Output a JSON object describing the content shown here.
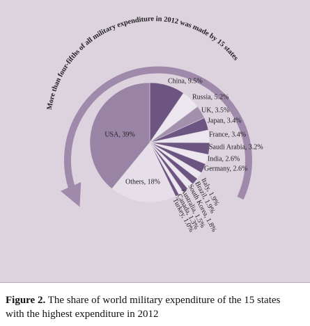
{
  "chart_data": {
    "type": "pie",
    "annotation": "More than four-fifths of all military expenditure in 2012 was made by 15 states",
    "categories": [
      "China",
      "Russia",
      "UK",
      "Japan",
      "France",
      "Saudi Arabia",
      "India",
      "Germany",
      "Italy",
      "Brazil",
      "South Korea",
      "Australia",
      "Canada",
      "Turkey",
      "Others",
      "USA"
    ],
    "values": [
      9.5,
      5.2,
      3.5,
      3.4,
      3.4,
      3.2,
      2.6,
      2.6,
      1.9,
      1.9,
      1.8,
      1.5,
      1.3,
      1.0,
      18,
      39
    ],
    "value_labels": [
      "China, 9.5%",
      "Russia, 5.2%",
      "UK, 3.5%",
      "Japan, 3.4%",
      "France, 3.4%",
      "Saudi Arabia, 3.2%",
      "India, 2.6%",
      "Germany, 2.6%",
      "Italy, 1.9%",
      "Brazil, 1.9%",
      "South Korea, 1.8%",
      "Australia, 1.5%",
      "Canada, 1.3%",
      "Turkey, 1.0%",
      "Others, 18%",
      "USA, 39%"
    ],
    "colors": [
      "#6c5581",
      "#ece6ef",
      "#a390ad",
      "#6c5581",
      "#ece6ef",
      "#6c5581",
      "#ece6ef",
      "#6c5581",
      "#ece6ef",
      "#6c5581",
      "#ece6ef",
      "#6c5581",
      "#ece6ef",
      "#6c5581",
      "#e6dfea",
      "#9a84a6"
    ]
  },
  "caption": {
    "label": "Figure 2.",
    "text": "The share of world military expenditure of the 15 states with the highest expenditure in 2012"
  }
}
